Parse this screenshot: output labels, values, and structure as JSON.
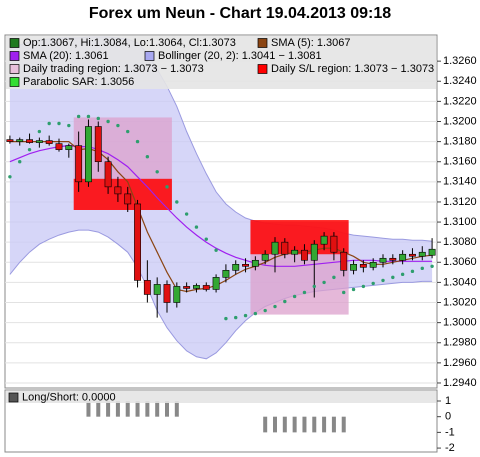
{
  "chart_data": [
    {
      "type": "candlestick",
      "title": "Forex um Neun - Chart 19.04.2013 09:18",
      "open": [
        1.3182,
        1.318,
        1.3182,
        1.3179,
        1.3181,
        1.3178,
        1.3172,
        1.3176,
        1.314,
        1.3195,
        1.316,
        1.3135,
        1.3128,
        1.3118,
        1.3042,
        1.3028,
        1.3038,
        1.302,
        1.3036,
        1.3034,
        1.3037,
        1.3033,
        1.3045,
        1.3052,
        1.3058,
        1.3056,
        1.3062,
        1.3068,
        1.308,
        1.3068,
        1.3072,
        1.3062,
        1.3078,
        1.3086,
        1.307,
        1.3052,
        1.3058,
        1.3055,
        1.306,
        1.3064,
        1.3062,
        1.3068,
        1.3066,
        1.3067
      ],
      "high": [
        1.3186,
        1.3184,
        1.3188,
        1.3184,
        1.3186,
        1.3183,
        1.3178,
        1.319,
        1.3202,
        1.32,
        1.3165,
        1.3145,
        1.3135,
        1.3122,
        1.3062,
        1.3045,
        1.3042,
        1.304,
        1.304,
        1.3039,
        1.304,
        1.3048,
        1.3058,
        1.3062,
        1.3064,
        1.3066,
        1.3072,
        1.3085,
        1.3084,
        1.3076,
        1.3078,
        1.3082,
        1.309,
        1.309,
        1.3074,
        1.3062,
        1.3062,
        1.3064,
        1.3068,
        1.3068,
        1.3072,
        1.3074,
        1.3076,
        1.3084
      ],
      "low": [
        1.3178,
        1.3176,
        1.3178,
        1.3174,
        1.3176,
        1.317,
        1.3164,
        1.313,
        1.3135,
        1.315,
        1.3128,
        1.312,
        1.311,
        1.3035,
        1.302,
        1.3005,
        1.301,
        1.3015,
        1.303,
        1.303,
        1.3031,
        1.303,
        1.304,
        1.3048,
        1.305,
        1.3052,
        1.3058,
        1.305,
        1.3064,
        1.306,
        1.3058,
        1.3025,
        1.3072,
        1.3062,
        1.3046,
        1.3048,
        1.305,
        1.3052,
        1.3055,
        1.3058,
        1.3058,
        1.3062,
        1.3062,
        1.3064
      ],
      "close": [
        1.318,
        1.3182,
        1.3179,
        1.3181,
        1.3178,
        1.3172,
        1.3176,
        1.314,
        1.3195,
        1.316,
        1.3135,
        1.3128,
        1.3118,
        1.3042,
        1.3028,
        1.3038,
        1.302,
        1.3036,
        1.3034,
        1.3037,
        1.3033,
        1.3045,
        1.3052,
        1.3058,
        1.3056,
        1.3062,
        1.3068,
        1.308,
        1.3068,
        1.3072,
        1.3062,
        1.3078,
        1.3086,
        1.307,
        1.3052,
        1.3058,
        1.3055,
        1.306,
        1.3064,
        1.3062,
        1.3068,
        1.3066,
        1.307,
        1.3073
      ],
      "up_color": "#33a833",
      "down_color": "#e01010",
      "lines": [
        {
          "name": "SMA (5)",
          "color": "#8b4513",
          "values": [
            1.318,
            1.318,
            1.318,
            1.318,
            1.318,
            1.318,
            1.318,
            1.3172,
            1.3173,
            1.317,
            1.3162,
            1.315,
            1.314,
            1.3115,
            1.309,
            1.307,
            1.305,
            1.3033,
            1.3031,
            1.3033,
            1.3034,
            1.3037,
            1.3042,
            1.3048,
            1.3053,
            1.3056,
            1.306,
            1.3065,
            1.3068,
            1.307,
            1.307,
            1.3072,
            1.3074,
            1.3074,
            1.307,
            1.3066,
            1.306,
            1.3058,
            1.3058,
            1.306,
            1.3062,
            1.3064,
            1.3066,
            1.3067
          ]
        },
        {
          "name": "SMA (20)",
          "color": "#a020f0",
          "values": [
            1.316,
            1.3164,
            1.3168,
            1.3171,
            1.3173,
            1.3175,
            1.3176,
            1.3175,
            1.3175,
            1.3172,
            1.3168,
            1.3162,
            1.3155,
            1.3145,
            1.3135,
            1.3124,
            1.3114,
            1.3104,
            1.3095,
            1.3087,
            1.308,
            1.3074,
            1.3069,
            1.3065,
            1.3062,
            1.3059,
            1.3057,
            1.3056,
            1.3056,
            1.3056,
            1.3057,
            1.3058,
            1.3059,
            1.306,
            1.3061,
            1.3062,
            1.3062,
            1.3062,
            1.3061,
            1.3061,
            1.3061,
            1.3061,
            1.3061,
            1.3061
          ]
        }
      ],
      "bollinger": {
        "color": "#c8c8f5",
        "line_color": "#9a9ae0",
        "upper": [
          1.3272,
          1.3276,
          1.3279,
          1.3281,
          1.3282,
          1.3283,
          1.3283,
          1.3283,
          1.3284,
          1.3284,
          1.3284,
          1.3283,
          1.3282,
          1.3278,
          1.3268,
          1.3252,
          1.3235,
          1.3215,
          1.319,
          1.3168,
          1.3148,
          1.313,
          1.3118,
          1.311,
          1.3104,
          1.3101,
          1.3099,
          1.3098,
          1.3097,
          1.3097,
          1.3096,
          1.3095,
          1.3094,
          1.3092,
          1.3089,
          1.3087,
          1.3086,
          1.3085,
          1.3084,
          1.3083,
          1.3083,
          1.3082,
          1.3082,
          1.3081
        ],
        "lower": [
          1.3048,
          1.306,
          1.307,
          1.3078,
          1.3083,
          1.3087,
          1.309,
          1.3092,
          1.3092,
          1.309,
          1.3085,
          1.3078,
          1.307,
          1.3055,
          1.3035,
          1.3012,
          1.2995,
          1.2982,
          1.2972,
          1.2966,
          1.2964,
          1.297,
          1.298,
          1.2992,
          1.3002,
          1.301,
          1.3016,
          1.302,
          1.3024,
          1.3027,
          1.3029,
          1.3031,
          1.3032,
          1.3033,
          1.3034,
          1.3035,
          1.3036,
          1.3037,
          1.3038,
          1.3039,
          1.304,
          1.304,
          1.3041,
          1.3041
        ]
      },
      "sar": {
        "color": "#2e9e6e",
        "values": [
          1.3145,
          1.316,
          1.3172,
          1.319,
          1.3198,
          1.3198,
          1.3196,
          1.3205,
          1.3205,
          1.3203,
          1.32,
          1.3196,
          1.319,
          1.318,
          1.3165,
          1.315,
          1.3135,
          1.312,
          1.3108,
          1.3095,
          1.3083,
          1.3072,
          1.3004,
          1.3005,
          1.3007,
          1.3009,
          1.3012,
          1.3016,
          1.3021,
          1.3026,
          1.303,
          1.3036,
          1.304,
          1.3045,
          1.303,
          1.3033,
          1.3036,
          1.3039,
          1.3042,
          1.3045,
          1.3048,
          1.3051,
          1.3054,
          1.3056
        ]
      },
      "trading_regions": [
        {
          "start": 7,
          "end": 16,
          "high": 1.3204,
          "low": 1.3112
        },
        {
          "start": 25,
          "end": 34,
          "high": 1.31,
          "low": 1.3008
        }
      ],
      "trading_region_color": "#dca0cc",
      "sl_regions": [
        {
          "start": 7,
          "end": 16,
          "high": 1.3143,
          "low": 1.3112
        },
        {
          "start": 25,
          "end": 34,
          "high": 1.3102,
          "low": 1.3068
        }
      ],
      "sl_region_color": "#ff0000",
      "legend": [
        {
          "label": "Op:1.3067, Hi:1.3084, Lo:1.3064, Cl:1.3073",
          "color": "#1f7a1f"
        },
        {
          "label": "SMA (5): 1.3067",
          "color": "#8b4513"
        },
        {
          "label": "SMA (20): 1.3061",
          "color": "#a020f0"
        },
        {
          "label": "Bollinger (20, 2): 1.3041 − 1.3081",
          "color": "#a8a8f0"
        },
        {
          "label": "Daily trading region: 1.3073 − 1.3073",
          "color": "#e8c0dc"
        },
        {
          "label": "Daily S/L region: 1.3073 − 1.3073",
          "color": "#ff0000"
        },
        {
          "label": "Parabolic SAR: 1.3056",
          "color": "#33dd33"
        }
      ],
      "ylim": [
        1.2935,
        1.3286
      ],
      "yticks": [
        {
          "value": 1.326,
          "label": "1.3260"
        },
        {
          "value": 1.324,
          "label": "1.3240"
        },
        {
          "value": 1.322,
          "label": "1.3220"
        },
        {
          "value": 1.32,
          "label": "1.3200"
        },
        {
          "value": 1.318,
          "label": "1.3180"
        },
        {
          "value": 1.316,
          "label": "1.3160"
        },
        {
          "value": 1.314,
          "label": "1.3140"
        },
        {
          "value": 1.312,
          "label": "1.3120"
        },
        {
          "value": 1.31,
          "label": "1.3100"
        },
        {
          "value": 1.308,
          "label": "1.3080"
        },
        {
          "value": 1.306,
          "label": "1.3060"
        },
        {
          "value": 1.304,
          "label": "1.3040"
        },
        {
          "value": 1.302,
          "label": "1.3020"
        },
        {
          "value": 1.3,
          "label": "1.3000"
        },
        {
          "value": 1.298,
          "label": "1.2980"
        },
        {
          "value": 1.296,
          "label": "1.2960"
        },
        {
          "value": 1.294,
          "label": "1.2940"
        }
      ],
      "grid": true
    },
    {
      "type": "bar",
      "title": "Long/Short: 0.0000",
      "color": "#888888",
      "values": [
        0,
        0,
        0,
        0,
        0,
        0,
        0,
        0,
        1,
        1,
        1,
        1,
        1,
        1,
        1,
        1,
        1,
        1,
        0,
        0,
        0,
        0,
        0,
        0,
        0,
        0,
        -1,
        -1,
        -1,
        -1,
        -1,
        -1,
        -1,
        -1,
        -1,
        0,
        0,
        0,
        0,
        0,
        0,
        0,
        0,
        0
      ],
      "ylim": [
        -2.25,
        1.7
      ],
      "yticks": [
        1,
        0,
        -1,
        -2
      ],
      "grid": false
    }
  ]
}
